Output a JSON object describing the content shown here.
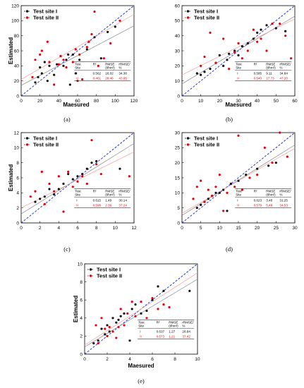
{
  "colors": {
    "site1": "#111111",
    "site2": "#e8000b",
    "one_to_one": "#2d3bd6",
    "fit1": "#888888",
    "fit2": "#f2a0a0"
  },
  "chart_data": [
    {
      "type": "scatter",
      "caption": "(a)",
      "xlabel": "Maesured",
      "ylabel": "Estimated",
      "xlim": [
        0,
        120
      ],
      "ylim": [
        0,
        120
      ],
      "xticks": [
        "0",
        "20",
        "40",
        "60",
        "80",
        "100",
        "120"
      ],
      "yticks": [
        "0",
        "20",
        "40",
        "60",
        "80",
        "100",
        "120"
      ],
      "legend": [
        "Test site I",
        "Test site II"
      ],
      "table": {
        "headers": [
          "Test Site",
          "R²",
          "RMSE (t/hm²)",
          "rRMSE/ %"
        ],
        "rows": [
          [
            "I",
            "0.562",
            "16.02",
            "34.38"
          ],
          [
            "II",
            "0.461",
            "28.46",
            "43.85"
          ]
        ]
      },
      "fit": [
        [
          0.66,
          14
        ],
        [
          0.72,
          22
        ]
      ],
      "series": [
        {
          "name": "Test site I",
          "points": [
            [
              15,
              18
            ],
            [
              18,
              25
            ],
            [
              20,
              38
            ],
            [
              22,
              30
            ],
            [
              25,
              45
            ],
            [
              28,
              20
            ],
            [
              30,
              40
            ],
            [
              35,
              28
            ],
            [
              38,
              42
            ],
            [
              42,
              53
            ],
            [
              45,
              40
            ],
            [
              48,
              48
            ],
            [
              50,
              55
            ],
            [
              52,
              15
            ],
            [
              55,
              55
            ],
            [
              58,
              30
            ],
            [
              62,
              48
            ],
            [
              70,
              62
            ],
            [
              78,
              78
            ],
            [
              85,
              50
            ],
            [
              92,
              85
            ],
            [
              100,
              92
            ]
          ]
        },
        {
          "name": "Test site II",
          "points": [
            [
              12,
              25
            ],
            [
              15,
              48
            ],
            [
              20,
              55
            ],
            [
              22,
              60
            ],
            [
              28,
              72
            ],
            [
              30,
              45
            ],
            [
              35,
              15
            ],
            [
              40,
              42
            ],
            [
              42,
              53
            ],
            [
              45,
              48
            ],
            [
              48,
              38
            ],
            [
              55,
              45
            ],
            [
              58,
              62
            ],
            [
              60,
              20
            ],
            [
              62,
              55
            ],
            [
              65,
              22
            ],
            [
              70,
              65
            ],
            [
              72,
              72
            ],
            [
              75,
              82
            ],
            [
              78,
              112
            ],
            [
              82,
              40
            ],
            [
              88,
              50
            ],
            [
              95,
              70
            ],
            [
              105,
              100
            ]
          ]
        }
      ]
    },
    {
      "type": "scatter",
      "caption": "(b)",
      "xlabel": "Maesured",
      "ylabel": "",
      "xlim": [
        0,
        60
      ],
      "ylim": [
        0,
        60
      ],
      "xticks": [
        "0",
        "10",
        "20",
        "30",
        "40",
        "50",
        "60"
      ],
      "yticks": [
        "0",
        "10",
        "20",
        "30",
        "40",
        "50",
        "60"
      ],
      "legend": [
        "Test site I",
        "Test site II"
      ],
      "table": {
        "headers": [
          "Test Site",
          "R²",
          "RMSE (t/hm²)",
          "rRMSE/ %"
        ],
        "rows": [
          [
            "I",
            "0.585",
            "9.11",
            "34.84"
          ],
          [
            "II",
            "0.540",
            "17.73",
            "47.20"
          ]
        ]
      },
      "fit": [
        [
          0.75,
          8
        ],
        [
          0.62,
          14
        ]
      ],
      "series": [
        {
          "name": "Test site I",
          "points": [
            [
              8,
              15
            ],
            [
              10,
              14
            ],
            [
              12,
              16
            ],
            [
              15,
              18
            ],
            [
              18,
              22
            ],
            [
              20,
              27
            ],
            [
              22,
              20
            ],
            [
              24,
              24
            ],
            [
              25,
              28
            ],
            [
              28,
              30
            ],
            [
              30,
              27
            ],
            [
              32,
              33
            ],
            [
              35,
              35
            ],
            [
              38,
              38
            ],
            [
              40,
              42
            ],
            [
              42,
              44
            ],
            [
              45,
              47
            ],
            [
              50,
              45
            ],
            [
              55,
              43
            ]
          ]
        },
        {
          "name": "Test site II",
          "points": [
            [
              10,
              20
            ],
            [
              12,
              26
            ],
            [
              15,
              42
            ],
            [
              18,
              22
            ],
            [
              22,
              38
            ],
            [
              25,
              18
            ],
            [
              28,
              29
            ],
            [
              30,
              35
            ],
            [
              32,
              25
            ],
            [
              35,
              30
            ],
            [
              38,
              44
            ],
            [
              40,
              36
            ],
            [
              42,
              38
            ],
            [
              45,
              30
            ],
            [
              48,
              48
            ],
            [
              52,
              48
            ],
            [
              55,
              40
            ],
            [
              58,
              25
            ]
          ]
        }
      ]
    },
    {
      "type": "scatter",
      "caption": "(c)",
      "xlabel": "",
      "ylabel": "Estimated",
      "xlim": [
        0,
        12
      ],
      "ylim": [
        0,
        12
      ],
      "xticks": [
        "0",
        "2",
        "4",
        "6",
        "8",
        "10",
        "12"
      ],
      "yticks": [
        "0",
        "2",
        "4",
        "6",
        "8",
        "10",
        "12"
      ],
      "legend": [
        "Test site I",
        "Test site II"
      ],
      "table": {
        "headers": [
          "Test Site",
          "R²",
          "RMSE (t/hm²)",
          "rRMSE/ %"
        ],
        "rows": [
          [
            "I",
            "0.615",
            "1.49",
            "30.14"
          ],
          [
            "II",
            "0.596",
            "2.36",
            "37.24"
          ]
        ]
      },
      "fit": [
        [
          0.78,
          1.2
        ],
        [
          0.62,
          2.0
        ]
      ],
      "series": [
        {
          "name": "Test site I",
          "points": [
            [
              1.5,
              2.8
            ],
            [
              2,
              3.2
            ],
            [
              2.5,
              3.5
            ],
            [
              3,
              4.5
            ],
            [
              3.5,
              3.8
            ],
            [
              4,
              4.5
            ],
            [
              4.5,
              5.2
            ],
            [
              5,
              6.5
            ],
            [
              5.5,
              5.8
            ],
            [
              6,
              6.2
            ],
            [
              6.5,
              6.5
            ],
            [
              7,
              7.2
            ],
            [
              7.5,
              8
            ],
            [
              8,
              8.2
            ],
            [
              10.5,
              7.2
            ]
          ]
        },
        {
          "name": "Test site II",
          "points": [
            [
              1,
              3.5
            ],
            [
              1.5,
              4.2
            ],
            [
              2.2,
              6.8
            ],
            [
              2.5,
              2.5
            ],
            [
              3,
              5.2
            ],
            [
              3.5,
              4.2
            ],
            [
              4,
              6.2
            ],
            [
              4.5,
              1.5
            ],
            [
              5,
              6.8
            ],
            [
              5.5,
              4.8
            ],
            [
              6,
              5.5
            ],
            [
              6.5,
              6.2
            ],
            [
              7,
              5.2
            ],
            [
              7.5,
              11
            ],
            [
              8,
              7.8
            ],
            [
              8.5,
              6.5
            ],
            [
              11.5,
              6.2
            ]
          ]
        }
      ]
    },
    {
      "type": "scatter",
      "caption": "(d)",
      "xlabel": "",
      "ylabel": "",
      "xlim": [
        0,
        30
      ],
      "ylim": [
        0,
        30
      ],
      "xticks": [
        "0",
        "5",
        "10",
        "15",
        "20",
        "25",
        "30"
      ],
      "yticks": [
        "0",
        "5",
        "10",
        "15",
        "20",
        "25",
        "30"
      ],
      "legend": [
        "Test site I",
        "Test site II"
      ],
      "table": {
        "headers": [
          "Test Site",
          "R²",
          "RMSE (t/hm²)",
          "rRMSE/ %"
        ],
        "rows": [
          [
            "I",
            "0.623",
            "3.48",
            "31.25"
          ],
          [
            "II",
            "0.579",
            "5.49",
            "34.53"
          ]
        ]
      },
      "fit": [
        [
          0.78,
          2.5
        ],
        [
          0.72,
          3.2
        ]
      ],
      "series": [
        {
          "name": "Test site I",
          "points": [
            [
              4,
              5
            ],
            [
              5,
              6
            ],
            [
              6,
              7
            ],
            [
              7,
              8
            ],
            [
              8,
              9
            ],
            [
              9,
              10
            ],
            [
              10,
              10
            ],
            [
              11,
              11
            ],
            [
              12,
              4
            ],
            [
              13,
              13
            ],
            [
              15,
              14
            ],
            [
              17,
              16
            ],
            [
              20,
              18
            ],
            [
              23,
              19
            ],
            [
              25,
              20
            ]
          ]
        },
        {
          "name": "Test site II",
          "points": [
            [
              3,
              8
            ],
            [
              4,
              12
            ],
            [
              5,
              14
            ],
            [
              6,
              7
            ],
            [
              7,
              11
            ],
            [
              8,
              9
            ],
            [
              9,
              12
            ],
            [
              10,
              16
            ],
            [
              11,
              4
            ],
            [
              12,
              10
            ],
            [
              14,
              12
            ],
            [
              16,
              11
            ],
            [
              18,
              15
            ],
            [
              20,
              16
            ],
            [
              22,
              25
            ],
            [
              24,
              20
            ],
            [
              26,
              30
            ],
            [
              28,
              22
            ],
            [
              15,
              29
            ]
          ]
        }
      ]
    },
    {
      "type": "scatter",
      "caption": "(e)",
      "xlabel": "Maesured",
      "ylabel": "Estimated",
      "xlim": [
        0,
        10
      ],
      "ylim": [
        0,
        10
      ],
      "xticks": [
        "0",
        "2",
        "4",
        "6",
        "8",
        "10"
      ],
      "yticks": [
        "0",
        "2",
        "4",
        "6",
        "8",
        "10"
      ],
      "legend": [
        "Test site I",
        "Test site II"
      ],
      "table": {
        "headers": [
          "Test Site",
          "R²",
          "RMSE (t/hm²)",
          "rRMSE/ %"
        ],
        "rows": [
          [
            "I",
            "0.637",
            "1.27",
            "28.84"
          ],
          [
            "II",
            "0.573",
            "1.21",
            "37.42"
          ]
        ]
      },
      "fit": [
        [
          0.75,
          0.8
        ],
        [
          0.8,
          1.0
        ]
      ],
      "series": [
        {
          "name": "Test site I",
          "points": [
            [
              0.8,
              1.2
            ],
            [
              1.2,
              1.5
            ],
            [
              1.5,
              2.8
            ],
            [
              1.8,
              2.2
            ],
            [
              2,
              3.2
            ],
            [
              2.2,
              2.5
            ],
            [
              2.5,
              4
            ],
            [
              2.8,
              3.5
            ],
            [
              3,
              3.8
            ],
            [
              3.2,
              4.2
            ],
            [
              3.5,
              4.5
            ],
            [
              4,
              1.5
            ],
            [
              4.2,
              5
            ],
            [
              4.5,
              5.5
            ],
            [
              5,
              4.5
            ],
            [
              5.5,
              4.8
            ],
            [
              6,
              6
            ],
            [
              6.5,
              7.5
            ],
            [
              7,
              7
            ],
            [
              9.3,
              7
            ]
          ]
        },
        {
          "name": "Test site II",
          "points": [
            [
              1,
              3.2
            ],
            [
              1.2,
              1.2
            ],
            [
              1.5,
              4
            ],
            [
              1.8,
              2.8
            ],
            [
              2,
              2
            ],
            [
              2.2,
              3
            ],
            [
              2.5,
              2.5
            ],
            [
              2.8,
              1.8
            ],
            [
              3,
              3
            ],
            [
              3.2,
              5
            ],
            [
              3.5,
              3.2
            ],
            [
              3.8,
              4.5
            ],
            [
              4.2,
              5.8
            ],
            [
              4.5,
              4.2
            ],
            [
              5,
              5.8
            ],
            [
              5.5,
              4
            ],
            [
              6,
              6.2
            ],
            [
              6.5,
              5
            ],
            [
              7,
              5.5
            ],
            [
              7.5,
              5.2
            ]
          ]
        }
      ]
    }
  ]
}
